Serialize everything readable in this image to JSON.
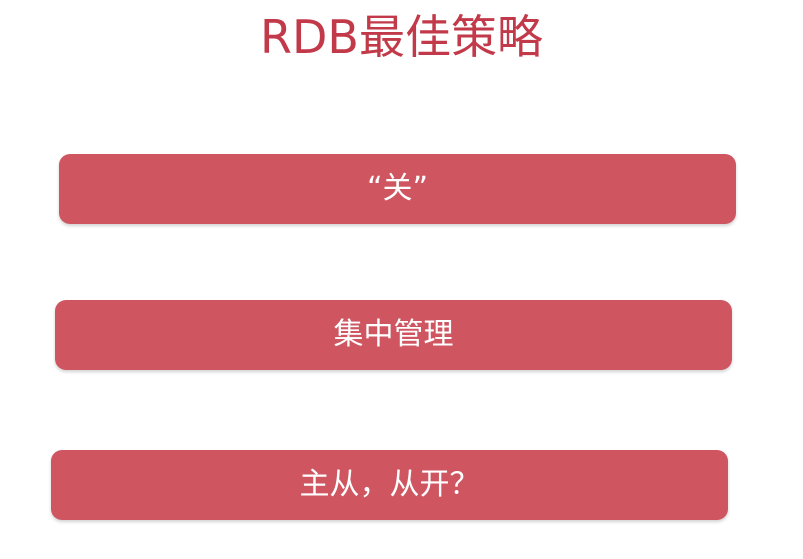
{
  "slide": {
    "title": "RDB最佳策略",
    "items": [
      {
        "label": "“关”"
      },
      {
        "label": "集中管理"
      },
      {
        "label": "主从，从开？"
      }
    ]
  },
  "colors": {
    "title": "#c23a4a",
    "bar": "#cf5661",
    "bar_text": "#ffffff",
    "background": "#ffffff"
  }
}
